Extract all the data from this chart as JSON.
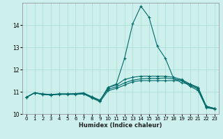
{
  "xlabel": "Humidex (Indice chaleur)",
  "background_color": "#cdf0ec",
  "grid_color": "#b0ddd8",
  "line_color": "#006b6b",
  "xlim": [
    -0.5,
    23.5
  ],
  "ylim": [
    10.0,
    15.0
  ],
  "yticks": [
    10,
    11,
    12,
    13,
    14
  ],
  "xticks": [
    0,
    1,
    2,
    3,
    4,
    5,
    6,
    7,
    8,
    9,
    10,
    11,
    12,
    13,
    14,
    15,
    16,
    17,
    18,
    19,
    20,
    21,
    22,
    23
  ],
  "series": [
    [
      10.75,
      10.95,
      10.9,
      10.88,
      10.9,
      10.9,
      10.9,
      10.92,
      10.75,
      10.6,
      11.2,
      11.35,
      12.5,
      14.05,
      14.85,
      14.35,
      13.05,
      12.5,
      11.6,
      11.4,
      11.35,
      11.15,
      10.35,
      10.25
    ],
    [
      10.75,
      10.95,
      10.88,
      10.85,
      10.88,
      10.88,
      10.88,
      10.9,
      10.72,
      10.55,
      11.05,
      11.15,
      11.3,
      11.45,
      11.5,
      11.5,
      11.5,
      11.5,
      11.5,
      11.5,
      11.25,
      11.05,
      10.28,
      10.22
    ],
    [
      10.75,
      10.95,
      10.9,
      10.88,
      10.9,
      10.9,
      10.9,
      10.92,
      10.75,
      10.6,
      11.2,
      11.3,
      11.55,
      11.65,
      11.7,
      11.7,
      11.7,
      11.7,
      11.65,
      11.55,
      11.35,
      11.2,
      10.35,
      10.25
    ],
    [
      10.75,
      10.95,
      10.88,
      10.85,
      10.9,
      10.9,
      10.92,
      10.95,
      10.78,
      10.62,
      11.12,
      11.22,
      11.4,
      11.52,
      11.58,
      11.6,
      11.6,
      11.62,
      11.58,
      11.52,
      11.3,
      11.12,
      10.32,
      10.24
    ]
  ],
  "markersize": 2.2
}
